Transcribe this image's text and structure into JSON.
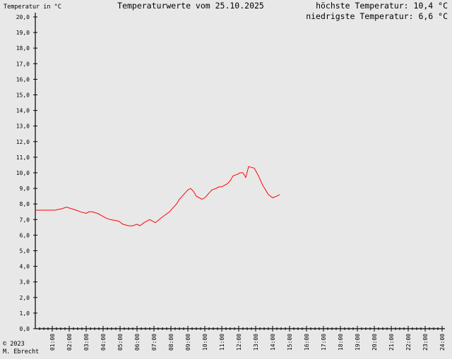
{
  "header": {
    "y_unit_label": "Temperatur in °C",
    "title": "Temperaturwerte vom 25.10.2025",
    "max_label": "höchste Temperatur: 10,4 °C",
    "min_label": "niedrigste Temperatur: 6,6 °C"
  },
  "footer": {
    "copyright": "© 2023",
    "author": "M. Ebrecht"
  },
  "colors": {
    "background": "#e8e8e8",
    "axis": "#000000",
    "line": "#ff0000"
  },
  "chart_data": {
    "type": "line",
    "title": "Temperaturwerte vom 25.10.2025",
    "ylabel": "Temperatur in °C",
    "xlabel": "",
    "ylim": [
      0,
      20
    ],
    "xlim_hours": [
      0,
      24
    ],
    "grid": false,
    "y_ticks": [
      "0,0",
      "1,0",
      "2,0",
      "3,0",
      "4,0",
      "5,0",
      "6,0",
      "7,0",
      "8,0",
      "9,0",
      "10,0",
      "11,0",
      "12,0",
      "13,0",
      "14,0",
      "15,0",
      "16,0",
      "17,0",
      "18,0",
      "19,0",
      "20,0"
    ],
    "x_ticks": [
      "01:00",
      "02:00",
      "03:00",
      "04:00",
      "05:00",
      "06:00",
      "07:00",
      "08:00",
      "09:00",
      "10:00",
      "11:00",
      "12:00",
      "13:00",
      "14:00",
      "15:00",
      "16:00",
      "17:00",
      "18:00",
      "19:00",
      "20:00",
      "21:00",
      "22:00",
      "23:00",
      "24:00"
    ],
    "series": [
      {
        "x": [
          "00:00",
          "01:10",
          "01:35",
          "01:50",
          "02:25",
          "02:40",
          "03:00",
          "03:10",
          "03:20",
          "03:40",
          "04:00",
          "04:10",
          "04:25",
          "04:55",
          "05:10",
          "05:30",
          "05:45",
          "06:00",
          "06:10",
          "06:25",
          "06:45",
          "07:05",
          "07:25",
          "07:55",
          "08:10",
          "08:20",
          "08:30",
          "08:45",
          "09:00",
          "09:10",
          "09:20",
          "09:30",
          "09:50",
          "10:00",
          "10:10",
          "10:25",
          "10:40",
          "10:50",
          "11:00",
          "11:20",
          "11:30",
          "11:40",
          "11:55",
          "12:05",
          "12:15",
          "12:25",
          "12:35",
          "12:55",
          "13:10",
          "13:25",
          "13:35",
          "13:45",
          "14:00",
          "14:15",
          "14:25"
        ],
        "y": [
          7.6,
          7.6,
          7.7,
          7.8,
          7.6,
          7.5,
          7.4,
          7.5,
          7.5,
          7.4,
          7.2,
          7.1,
          7.0,
          6.9,
          6.7,
          6.6,
          6.6,
          6.7,
          6.6,
          6.8,
          7.0,
          6.8,
          7.1,
          7.5,
          7.8,
          8.0,
          8.3,
          8.6,
          8.9,
          9.0,
          8.8,
          8.5,
          8.3,
          8.4,
          8.6,
          8.9,
          9.0,
          9.1,
          9.1,
          9.3,
          9.5,
          9.8,
          9.9,
          10.0,
          10.0,
          9.7,
          10.4,
          10.3,
          9.8,
          9.2,
          8.9,
          8.6,
          8.4,
          8.5,
          8.6
        ]
      }
    ]
  }
}
